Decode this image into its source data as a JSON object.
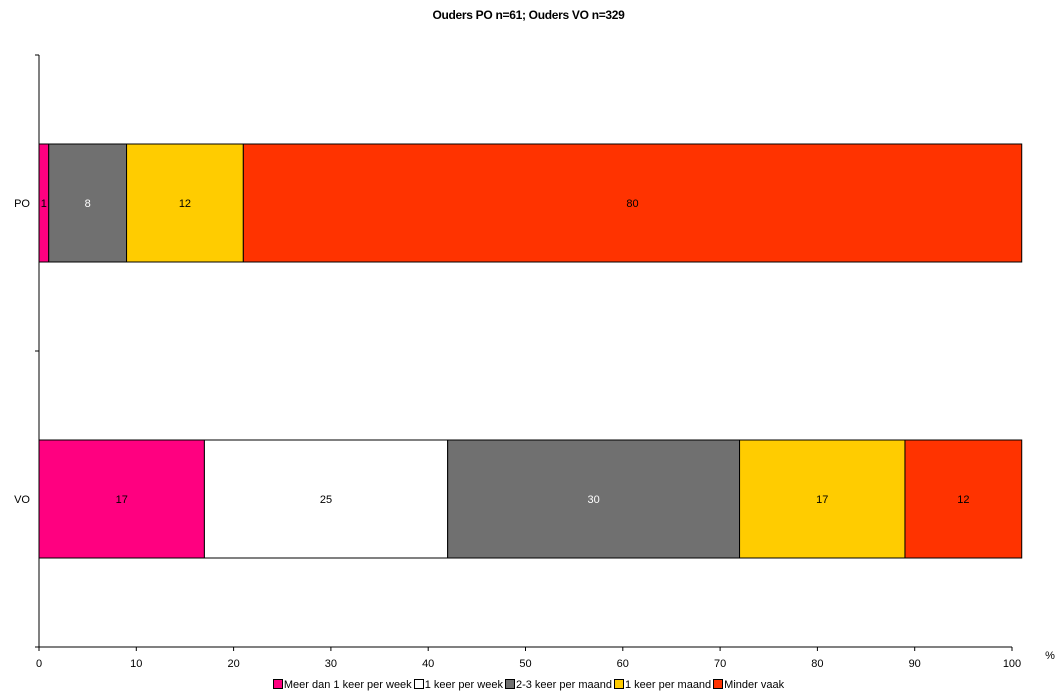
{
  "chart_data": {
    "type": "bar",
    "orientation": "horizontal",
    "stacked": true,
    "title": "Ouders PO n=61; Ouders VO n=329",
    "categories": [
      "PO",
      "VO"
    ],
    "unit_label": "%",
    "xlim": [
      0,
      100
    ],
    "x_ticks": [
      "0",
      "10",
      "20",
      "30",
      "40",
      "50",
      "60",
      "70",
      "80",
      "90",
      "100"
    ],
    "grid": false,
    "legend_position": "bottom",
    "series": [
      {
        "name": "Meer dan 1 keer per week",
        "color": "#ff0080",
        "values": [
          1,
          17
        ],
        "labels": [
          "1",
          "17"
        ],
        "label_color": "#000000"
      },
      {
        "name": "1 keer per week",
        "color": "#ffffff",
        "values": [
          0,
          25
        ],
        "labels": [
          "",
          "25"
        ],
        "label_color": "#000000"
      },
      {
        "name": "2-3 keer per maand",
        "color": "#707070",
        "values": [
          8,
          30
        ],
        "labels": [
          "8",
          "30"
        ],
        "label_color": "#ffffff"
      },
      {
        "name": "1 keer per maand",
        "color": "#ffcc00",
        "values": [
          12,
          17
        ],
        "labels": [
          "12",
          "17"
        ],
        "label_color": "#000000"
      },
      {
        "name": "Minder vaak",
        "color": "#ff3300",
        "values": [
          80,
          12
        ],
        "labels": [
          "80",
          "12"
        ],
        "label_color": "#000000"
      }
    ]
  }
}
